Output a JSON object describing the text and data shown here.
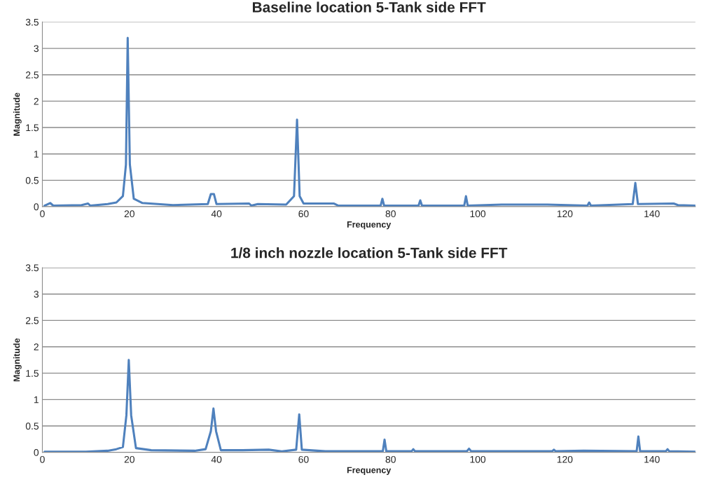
{
  "chart_data": [
    {
      "type": "line",
      "title": "Baseline location 5-Tank side FFT",
      "xlabel": "Frequency",
      "ylabel": "Magnitude",
      "xlim": [
        0,
        150
      ],
      "ylim": [
        0,
        3.5
      ],
      "xticks": [
        0,
        20,
        40,
        60,
        80,
        100,
        120,
        140
      ],
      "yticks": [
        0,
        0.5,
        1,
        1.5,
        2,
        2.5,
        3,
        3.5
      ],
      "grid": "y",
      "legend": false,
      "series": [
        {
          "color": "#4f81bd",
          "x": [
            0.5,
            1.8,
            2.5,
            9,
            10.5,
            11,
            15,
            17,
            18.5,
            19.2,
            19.6,
            20.1,
            21,
            23,
            30,
            38,
            38.7,
            39.4,
            40,
            47.5,
            48,
            49.5,
            56,
            57.8,
            58.5,
            59.1,
            60,
            67,
            68,
            77.7,
            78.1,
            78.5,
            86.4,
            86.8,
            87.2,
            96.9,
            97.3,
            97.7,
            105.5,
            116,
            125.2,
            125.6,
            126,
            135.6,
            136.2,
            136.8,
            145,
            146,
            150
          ],
          "values": [
            0.02,
            0.07,
            0.02,
            0.03,
            0.06,
            0.02,
            0.05,
            0.08,
            0.2,
            0.8,
            3.2,
            0.8,
            0.15,
            0.07,
            0.03,
            0.05,
            0.24,
            0.24,
            0.05,
            0.06,
            0.02,
            0.05,
            0.04,
            0.2,
            1.65,
            0.2,
            0.06,
            0.06,
            0.02,
            0.02,
            0.15,
            0.02,
            0.02,
            0.12,
            0.02,
            0.02,
            0.2,
            0.02,
            0.04,
            0.04,
            0.02,
            0.08,
            0.02,
            0.05,
            0.45,
            0.05,
            0.06,
            0.03,
            0.02
          ]
        }
      ]
    },
    {
      "type": "line",
      "title": "1/8 inch nozzle location 5-Tank side FFT",
      "xlabel": "Frequency",
      "ylabel": "Magnitude",
      "xlim": [
        0,
        150
      ],
      "ylim": [
        0,
        3.5
      ],
      "xticks": [
        0,
        20,
        40,
        60,
        80,
        100,
        120,
        140
      ],
      "yticks": [
        0,
        0.5,
        1,
        1.5,
        2,
        2.5,
        3,
        3.5
      ],
      "grid": "y",
      "legend": false,
      "series": [
        {
          "color": "#4f81bd",
          "x": [
            0.5,
            10,
            15,
            17,
            18.5,
            19.3,
            19.85,
            20.4,
            21.5,
            25,
            35,
            37.5,
            38.7,
            39.3,
            39.9,
            41,
            46,
            52,
            55,
            58.3,
            59.0,
            59.6,
            65,
            78.2,
            78.6,
            79.0,
            84.8,
            85.2,
            85.6,
            97.5,
            98.0,
            98.5,
            117.1,
            117.5,
            117.9,
            124.3,
            136.5,
            136.9,
            137.3,
            143.2,
            143.6,
            144.0,
            150
          ],
          "values": [
            0.01,
            0.01,
            0.03,
            0.06,
            0.1,
            0.7,
            1.75,
            0.7,
            0.08,
            0.04,
            0.03,
            0.06,
            0.4,
            0.83,
            0.4,
            0.04,
            0.04,
            0.05,
            0.02,
            0.05,
            0.72,
            0.05,
            0.02,
            0.02,
            0.24,
            0.02,
            0.02,
            0.06,
            0.02,
            0.02,
            0.07,
            0.02,
            0.02,
            0.05,
            0.02,
            0.03,
            0.02,
            0.3,
            0.02,
            0.02,
            0.06,
            0.02,
            0.01
          ]
        }
      ]
    }
  ]
}
